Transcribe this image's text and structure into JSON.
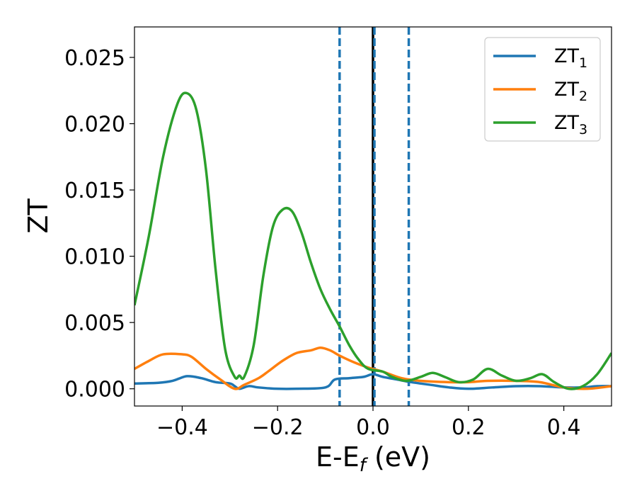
{
  "chart_data": {
    "type": "line",
    "xlabel": "E-E",
    "xlabel_sub": "f",
    "xlabel_unit": " (eV)",
    "ylabel": "ZT",
    "xlim": [
      -0.5,
      0.5
    ],
    "ylim": [
      -0.0013,
      0.0273
    ],
    "xticks": [
      -0.4,
      -0.2,
      0.0,
      0.2,
      0.4
    ],
    "xtick_labels": [
      "−0.4",
      "−0.2",
      "0.0",
      "0.2",
      "0.4"
    ],
    "yticks": [
      0.0,
      0.005,
      0.01,
      0.015,
      0.02,
      0.025
    ],
    "ytick_labels": [
      "0.000",
      "0.005",
      "0.010",
      "0.015",
      "0.020",
      "0.025"
    ],
    "grid": false,
    "legend_position": "top-right",
    "vertical_lines": [
      {
        "x": -0.07,
        "style": "dashed",
        "color": "#1f77b4"
      },
      {
        "x": 0.0,
        "style": "solid",
        "color": "#000000"
      },
      {
        "x": 0.003,
        "style": "dashed",
        "color": "#1f77b4"
      },
      {
        "x": 0.075,
        "style": "dashed",
        "color": "#1f77b4"
      }
    ],
    "series": [
      {
        "name": "ZT",
        "name_sub": "1",
        "color": "#1f77b4",
        "points": [
          [
            -0.5,
            0.0004
          ],
          [
            -0.45,
            0.00045
          ],
          [
            -0.42,
            0.0006
          ],
          [
            -0.39,
            0.00095
          ],
          [
            -0.36,
            0.0008
          ],
          [
            -0.33,
            0.0005
          ],
          [
            -0.3,
            0.0004
          ],
          [
            -0.29,
            0.0002
          ],
          [
            -0.28,
            0.0
          ],
          [
            -0.26,
            0.0002
          ],
          [
            -0.24,
            0.0001
          ],
          [
            -0.2,
            0.0
          ],
          [
            -0.16,
            0.0
          ],
          [
            -0.1,
            0.0001
          ],
          [
            -0.08,
            0.0007
          ],
          [
            -0.05,
            0.0008
          ],
          [
            -0.02,
            0.0009
          ],
          [
            0.0,
            0.0011
          ],
          [
            0.02,
            0.0009
          ],
          [
            0.05,
            0.0007
          ],
          [
            0.08,
            0.0005
          ],
          [
            0.12,
            0.0003
          ],
          [
            0.16,
            0.0001
          ],
          [
            0.2,
            0.0
          ],
          [
            0.25,
            0.0001
          ],
          [
            0.3,
            0.0002
          ],
          [
            0.35,
            0.0002
          ],
          [
            0.4,
            0.0001
          ],
          [
            0.44,
            0.0001
          ],
          [
            0.47,
            0.0002
          ],
          [
            0.5,
            0.0002
          ]
        ]
      },
      {
        "name": "ZT",
        "name_sub": "2",
        "color": "#ff7f0e",
        "points": [
          [
            -0.5,
            0.0015
          ],
          [
            -0.47,
            0.0021
          ],
          [
            -0.44,
            0.0026
          ],
          [
            -0.4,
            0.0026
          ],
          [
            -0.38,
            0.0024
          ],
          [
            -0.35,
            0.0015
          ],
          [
            -0.32,
            0.0007
          ],
          [
            -0.29,
            0.0
          ],
          [
            -0.27,
            0.0003
          ],
          [
            -0.24,
            0.0008
          ],
          [
            -0.22,
            0.0013
          ],
          [
            -0.19,
            0.0021
          ],
          [
            -0.16,
            0.0027
          ],
          [
            -0.13,
            0.0029
          ],
          [
            -0.11,
            0.0031
          ],
          [
            -0.09,
            0.0029
          ],
          [
            -0.07,
            0.0025
          ],
          [
            -0.04,
            0.002
          ],
          [
            -0.01,
            0.0016
          ],
          [
            0.02,
            0.0013
          ],
          [
            0.06,
            0.0008
          ],
          [
            0.1,
            0.0006
          ],
          [
            0.16,
            0.0005
          ],
          [
            0.2,
            0.0005
          ],
          [
            0.24,
            0.0006
          ],
          [
            0.3,
            0.0006
          ],
          [
            0.35,
            0.0005
          ],
          [
            0.4,
            0.0001
          ],
          [
            0.45,
            0.0
          ],
          [
            0.5,
            0.0002
          ]
        ]
      },
      {
        "name": "ZT",
        "name_sub": "3",
        "color": "#2ca02c",
        "points": [
          [
            -0.5,
            0.0063
          ],
          [
            -0.47,
            0.0115
          ],
          [
            -0.44,
            0.0175
          ],
          [
            -0.41,
            0.0215
          ],
          [
            -0.39,
            0.0223
          ],
          [
            -0.37,
            0.021
          ],
          [
            -0.35,
            0.0165
          ],
          [
            -0.33,
            0.009
          ],
          [
            -0.31,
            0.003
          ],
          [
            -0.29,
            0.0009
          ],
          [
            -0.28,
            0.001
          ],
          [
            -0.27,
            0.0009
          ],
          [
            -0.25,
            0.0033
          ],
          [
            -0.23,
            0.0085
          ],
          [
            -0.21,
            0.0122
          ],
          [
            -0.19,
            0.0135
          ],
          [
            -0.17,
            0.0134
          ],
          [
            -0.15,
            0.0118
          ],
          [
            -0.13,
            0.0095
          ],
          [
            -0.11,
            0.0075
          ],
          [
            -0.09,
            0.006
          ],
          [
            -0.07,
            0.0047
          ],
          [
            -0.05,
            0.0033
          ],
          [
            -0.03,
            0.0022
          ],
          [
            -0.01,
            0.0015
          ],
          [
            0.02,
            0.0013
          ],
          [
            0.04,
            0.0009
          ],
          [
            0.07,
            0.0006
          ],
          [
            0.1,
            0.0009
          ],
          [
            0.125,
            0.0012
          ],
          [
            0.15,
            0.0009
          ],
          [
            0.18,
            0.0005
          ],
          [
            0.21,
            0.0007
          ],
          [
            0.24,
            0.0015
          ],
          [
            0.27,
            0.001
          ],
          [
            0.3,
            0.0006
          ],
          [
            0.33,
            0.0008
          ],
          [
            0.355,
            0.0011
          ],
          [
            0.38,
            0.0005
          ],
          [
            0.41,
            0.0
          ],
          [
            0.44,
            0.0002
          ],
          [
            0.47,
            0.0011
          ],
          [
            0.5,
            0.0027
          ]
        ]
      }
    ]
  }
}
